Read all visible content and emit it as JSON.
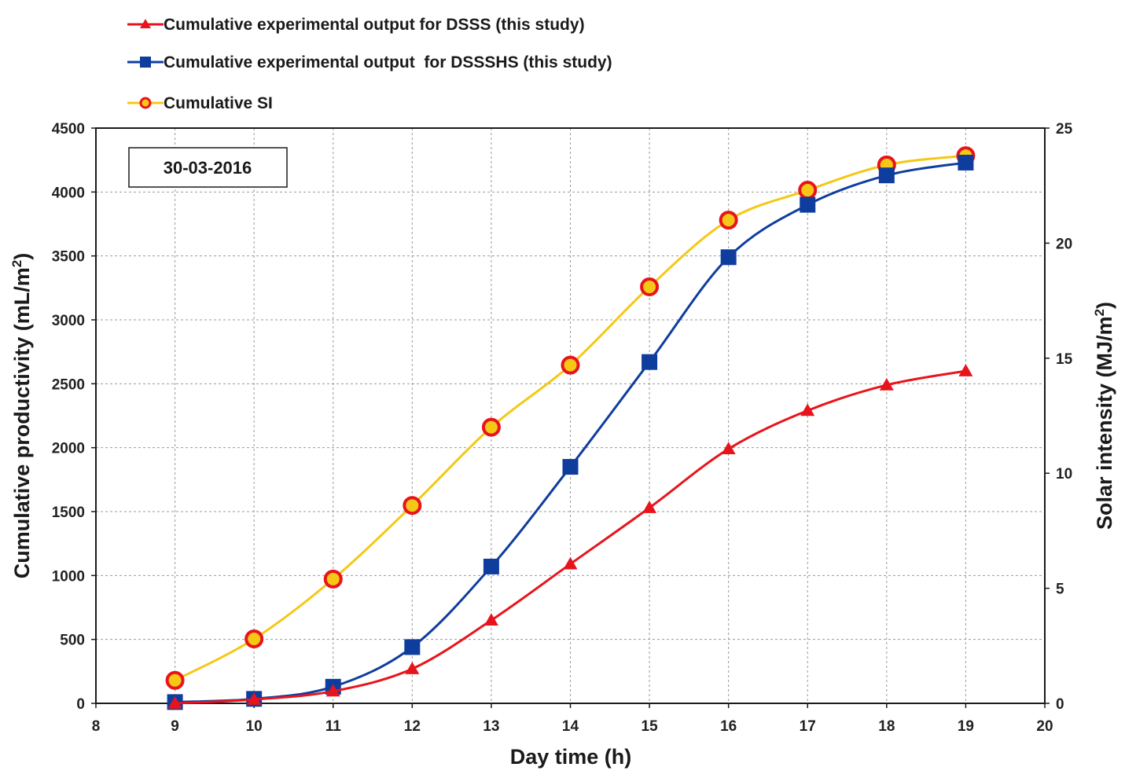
{
  "chart_data": {
    "type": "line",
    "date_label": "30-03-2016",
    "xlabel": "Day time (h)",
    "ylabel": "Cumulative productivity (mL/m",
    "ylabel_sup": "2",
    "ylabel_close": ")",
    "y2label": "Solar intensity (MJ/m",
    "y2label_sup": "2",
    "y2label_close": ")",
    "xlim": [
      8,
      20
    ],
    "ylim": [
      0,
      4500
    ],
    "y2lim": [
      0,
      25
    ],
    "x_ticks": [
      8,
      9,
      10,
      11,
      12,
      13,
      14,
      15,
      16,
      17,
      18,
      19,
      20
    ],
    "y_ticks": [
      0,
      500,
      1000,
      1500,
      2000,
      2500,
      3000,
      3500,
      4000,
      4500
    ],
    "y2_ticks": [
      0,
      5,
      10,
      15,
      20,
      25
    ],
    "grid": true,
    "legend_position": "top-left (above plot)",
    "series": [
      {
        "name": "Cumulative experimental output for DSSS (this study)",
        "axis": "left",
        "color": "#e8141c",
        "marker": "triangle",
        "x": [
          9,
          10,
          11,
          12,
          13,
          14,
          15,
          16,
          17,
          18,
          19
        ],
        "values": [
          0,
          30,
          95,
          270,
          650,
          1090,
          1530,
          1990,
          2290,
          2490,
          2600
        ]
      },
      {
        "name": "Cumulative experimental output  for DSSSHS (this study)",
        "axis": "left",
        "color": "#0f3d9e",
        "marker": "square",
        "x": [
          9,
          10,
          11,
          12,
          13,
          14,
          15,
          16,
          17,
          18,
          19
        ],
        "values": [
          10,
          35,
          130,
          440,
          1070,
          1850,
          2670,
          3490,
          3900,
          4130,
          4230
        ]
      },
      {
        "name": "Cumulative SI",
        "axis": "right",
        "color": "#f5c816",
        "marker_edge": "#e8141c",
        "marker": "circle",
        "x": [
          9,
          10,
          11,
          12,
          13,
          14,
          15,
          16,
          17,
          18,
          19
        ],
        "values": [
          1.0,
          2.8,
          5.4,
          8.6,
          12.0,
          14.7,
          18.1,
          21.0,
          22.3,
          23.4,
          23.8
        ]
      }
    ]
  }
}
